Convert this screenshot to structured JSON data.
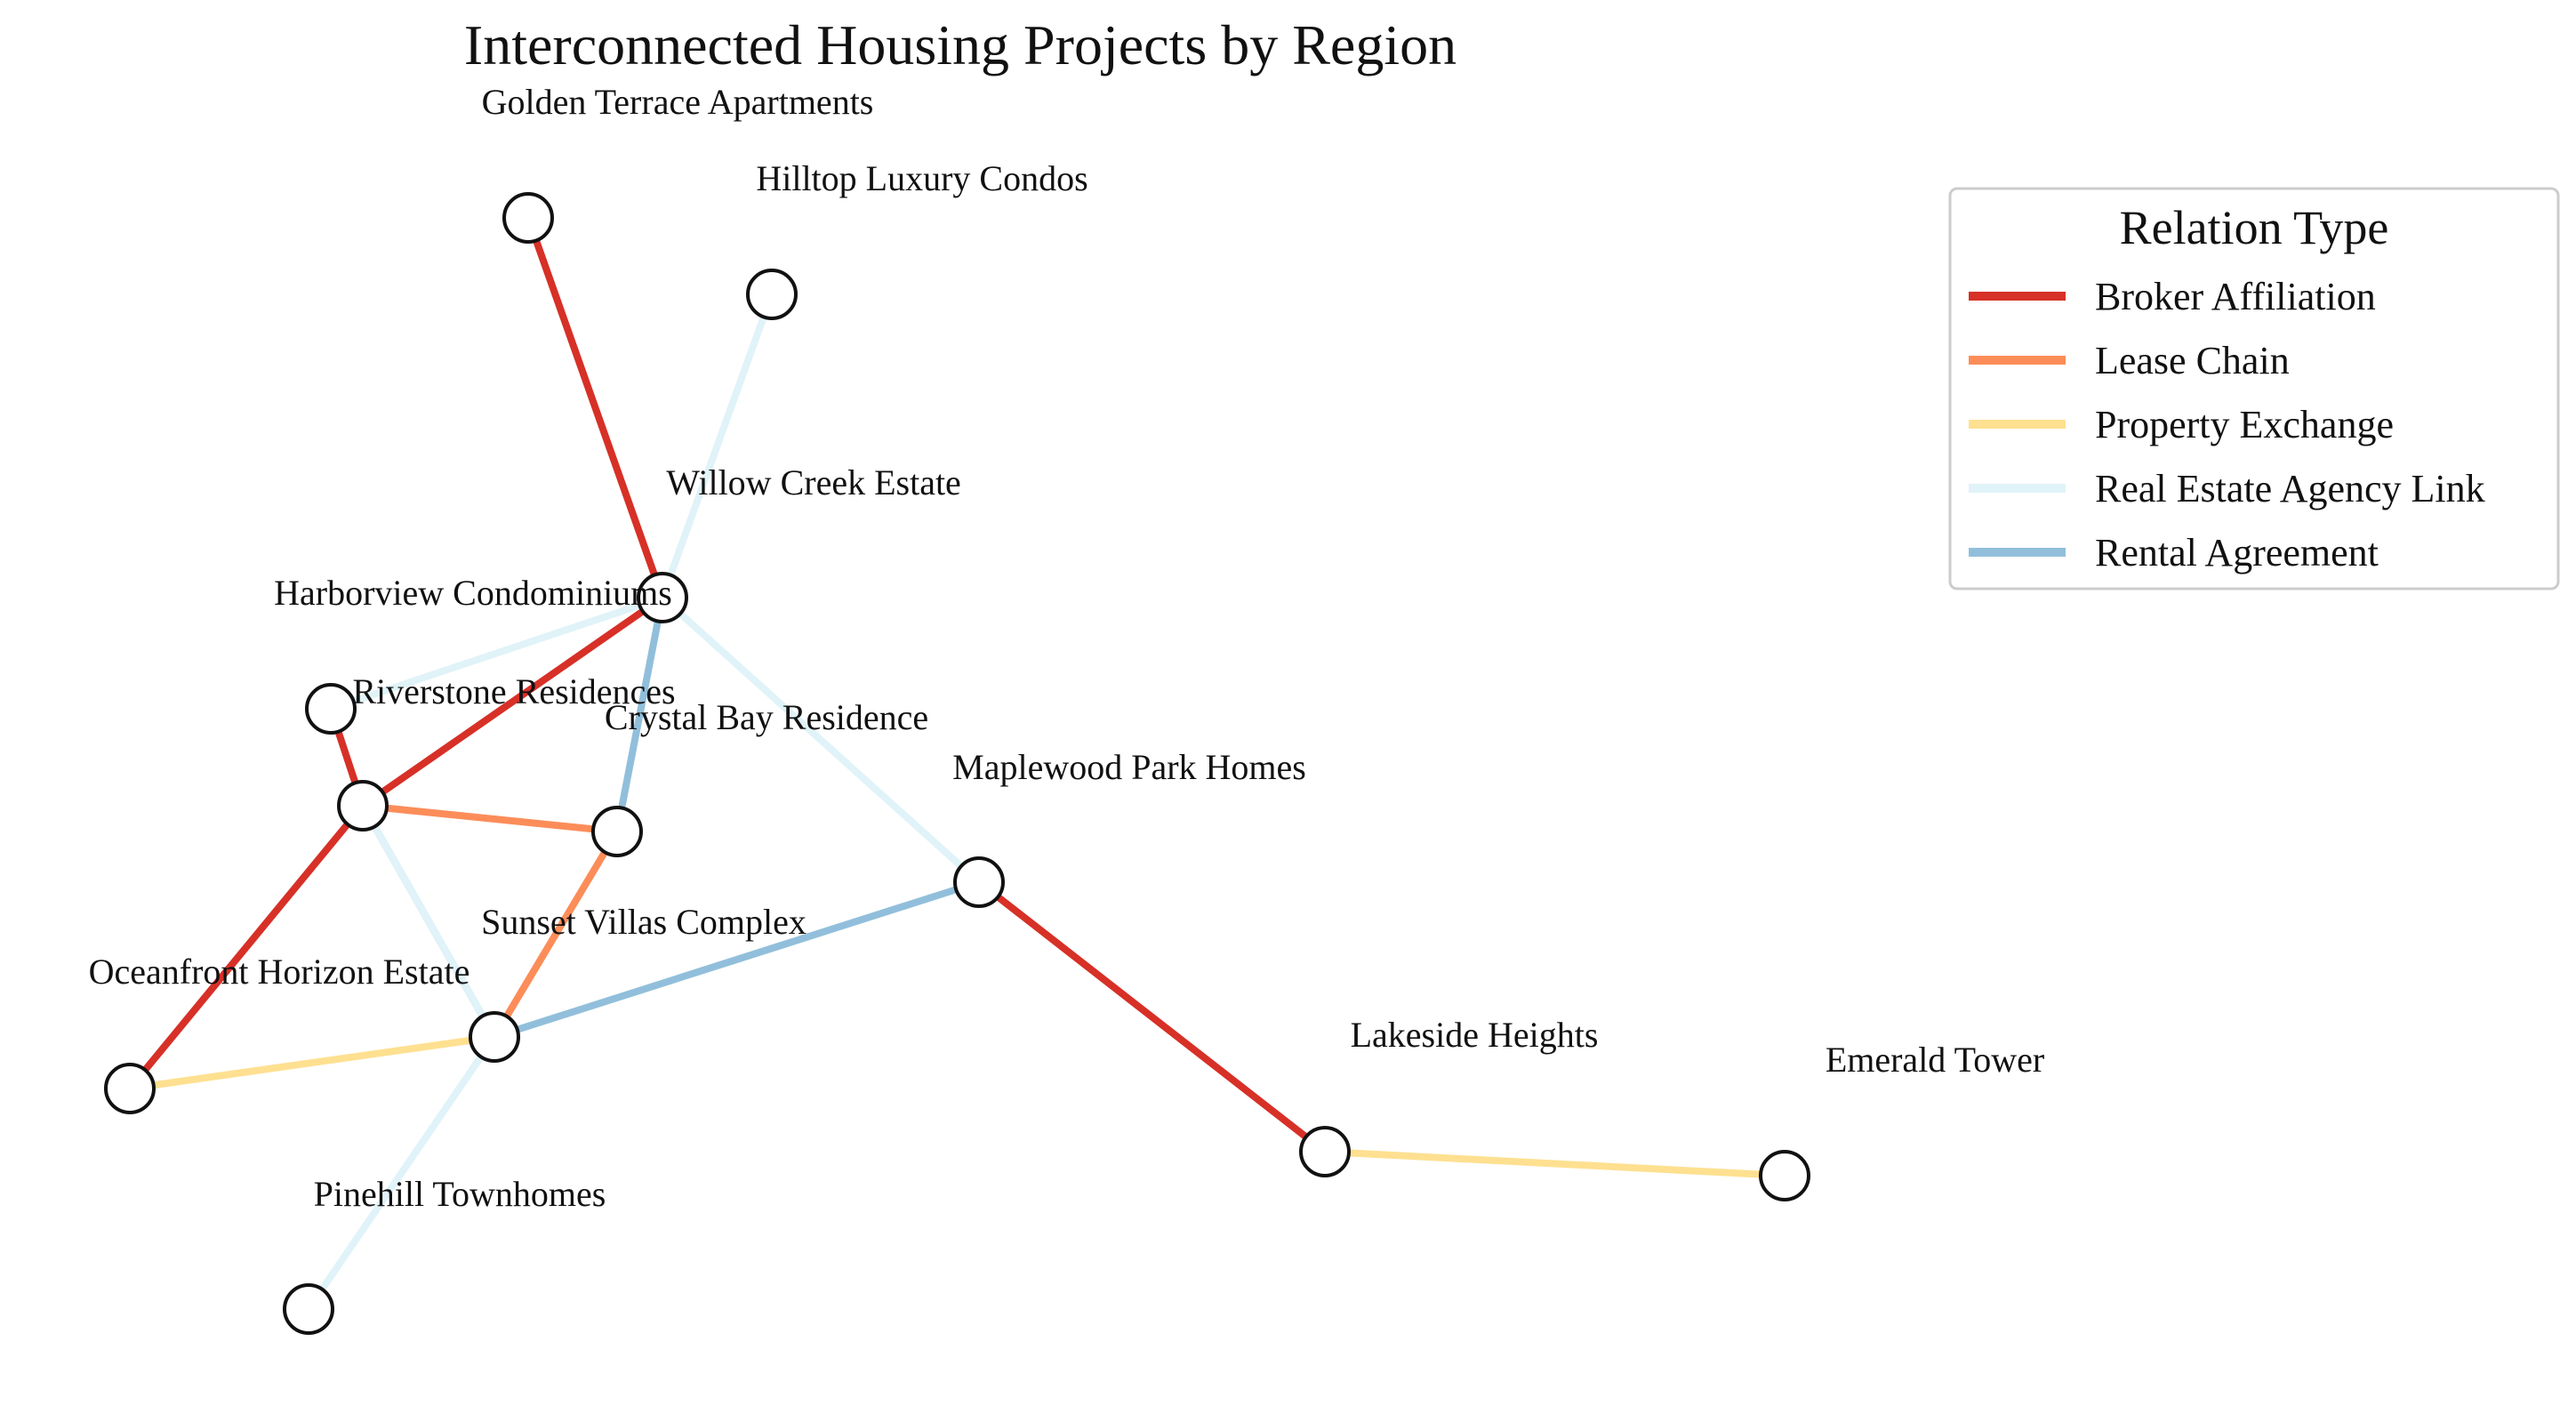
{
  "title": "Interconnected Housing Projects by Region",
  "relation_colors": {
    "Broker Affiliation": "#d73027",
    "Lease Chain": "#fc8d59",
    "Property Exchange": "#fee090",
    "Real Estate Agency Link": "#e0f3f8",
    "Rental Agreement": "#91bfdb"
  },
  "legend": {
    "title": "Relation Type",
    "items": [
      "Broker Affiliation",
      "Lease Chain",
      "Property Exchange",
      "Real Estate Agency Link",
      "Rental Agreement"
    ]
  },
  "nodes": [
    {
      "id": "golden",
      "label": "Golden Terrace Apartments"
    },
    {
      "id": "hilltop",
      "label": "Hilltop Luxury Condos"
    },
    {
      "id": "willow",
      "label": "Willow Creek Estate"
    },
    {
      "id": "harbor",
      "label": "Harborview Condominiums"
    },
    {
      "id": "riverstone",
      "label": "Riverstone Residences"
    },
    {
      "id": "crystal",
      "label": "Crystal Bay Residence"
    },
    {
      "id": "maplewood",
      "label": "Maplewood Park Homes"
    },
    {
      "id": "sunset",
      "label": "Sunset Villas Complex"
    },
    {
      "id": "oceanfront",
      "label": "Oceanfront Horizon Estate"
    },
    {
      "id": "lakeside",
      "label": "Lakeside Heights"
    },
    {
      "id": "emerald",
      "label": "Emerald Tower"
    },
    {
      "id": "pinehill",
      "label": "Pinehill Townhomes"
    }
  ],
  "edges": [
    {
      "source": "golden",
      "target": "willow",
      "relation": "Broker Affiliation"
    },
    {
      "source": "hilltop",
      "target": "willow",
      "relation": "Real Estate Agency Link"
    },
    {
      "source": "willow",
      "target": "riverstone",
      "relation": "Real Estate Agency Link"
    },
    {
      "source": "willow",
      "target": "maplewood",
      "relation": "Real Estate Agency Link"
    },
    {
      "source": "willow",
      "target": "harbor",
      "relation": "Broker Affiliation"
    },
    {
      "source": "willow",
      "target": "crystal",
      "relation": "Rental Agreement"
    },
    {
      "source": "riverstone",
      "target": "harbor",
      "relation": "Broker Affiliation"
    },
    {
      "source": "harbor",
      "target": "crystal",
      "relation": "Lease Chain"
    },
    {
      "source": "harbor",
      "target": "sunset",
      "relation": "Rental Agreement"
    },
    {
      "source": "harbor",
      "target": "sunset",
      "relation": "Real Estate Agency Link"
    },
    {
      "source": "harbor",
      "target": "oceanfront",
      "relation": "Broker Affiliation"
    },
    {
      "source": "crystal",
      "target": "sunset",
      "relation": "Lease Chain"
    },
    {
      "source": "maplewood",
      "target": "sunset",
      "relation": "Rental Agreement"
    },
    {
      "source": "maplewood",
      "target": "lakeside",
      "relation": "Broker Affiliation"
    },
    {
      "source": "sunset",
      "target": "oceanfront",
      "relation": "Property Exchange"
    },
    {
      "source": "sunset",
      "target": "pinehill",
      "relation": "Real Estate Agency Link"
    },
    {
      "source": "lakeside",
      "target": "emerald",
      "relation": "Property Exchange"
    }
  ]
}
